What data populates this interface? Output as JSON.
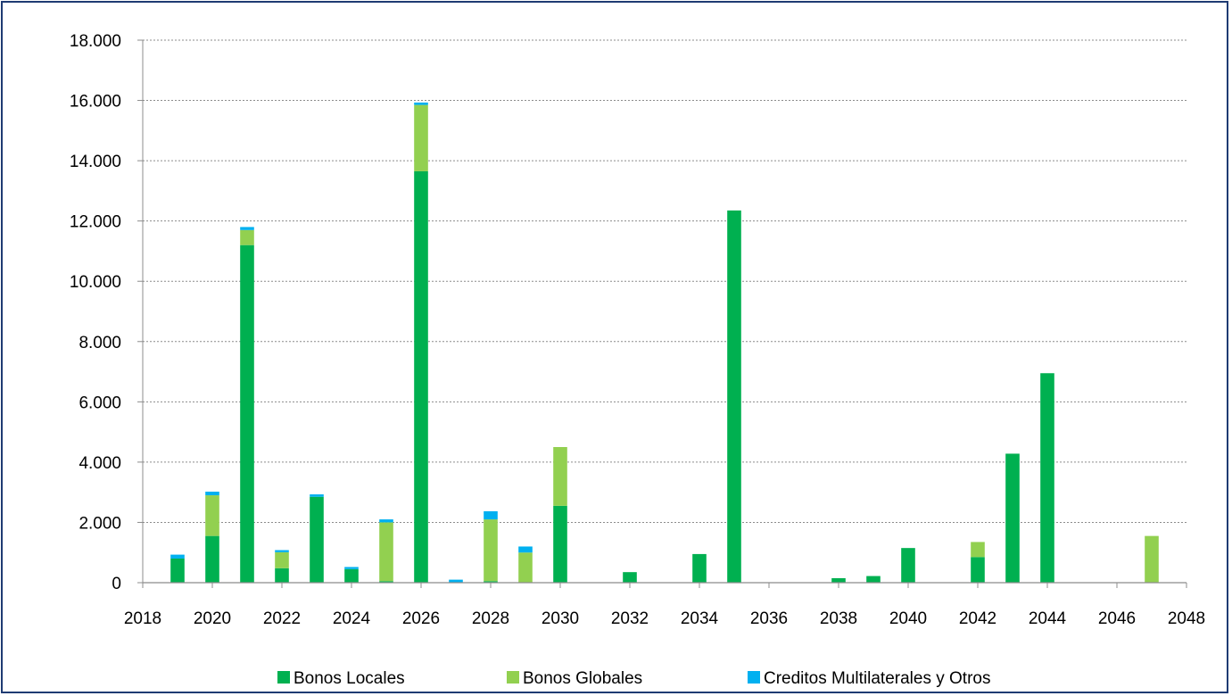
{
  "chart_data": {
    "type": "bar",
    "stacked": true,
    "title": "",
    "xlabel": "",
    "ylabel": "",
    "ylim": [
      0,
      18000
    ],
    "yticks": [
      0,
      2000,
      4000,
      6000,
      8000,
      10000,
      12000,
      14000,
      16000,
      18000
    ],
    "ytick_labels": [
      "0",
      "2.000",
      "4.000",
      "6.000",
      "8.000",
      "10.000",
      "12.000",
      "14.000",
      "16.000",
      "18.000"
    ],
    "xlim": [
      2018,
      2048
    ],
    "xticks": [
      2018,
      2020,
      2022,
      2024,
      2026,
      2028,
      2030,
      2032,
      2034,
      2036,
      2038,
      2040,
      2042,
      2044,
      2046,
      2048
    ],
    "grid": "horizontal-dashed",
    "legend_position": "bottom",
    "x": [
      2019,
      2020,
      2021,
      2022,
      2023,
      2024,
      2025,
      2026,
      2027,
      2028,
      2029,
      2030,
      2032,
      2034,
      2035,
      2038,
      2039,
      2040,
      2042,
      2043,
      2044,
      2047
    ],
    "series": [
      {
        "name": "Bonos Locales",
        "color": "#00b050",
        "values": [
          800,
          1550,
          11200,
          480,
          2850,
          450,
          50,
          13650,
          0,
          50,
          0,
          2550,
          350,
          950,
          12350,
          150,
          220,
          1150,
          850,
          4280,
          6950,
          0
        ]
      },
      {
        "name": "Bonos Globales",
        "color": "#92d050",
        "values": [
          0,
          1350,
          500,
          530,
          0,
          0,
          1950,
          2200,
          0,
          2050,
          1000,
          1950,
          0,
          0,
          0,
          0,
          0,
          0,
          500,
          0,
          0,
          1550
        ]
      },
      {
        "name": "Creditos Multilaterales y Otros",
        "color": "#00b0f0",
        "values": [
          130,
          120,
          100,
          70,
          80,
          70,
          100,
          80,
          100,
          270,
          200,
          0,
          0,
          0,
          0,
          0,
          0,
          0,
          0,
          0,
          0,
          0
        ]
      }
    ]
  }
}
